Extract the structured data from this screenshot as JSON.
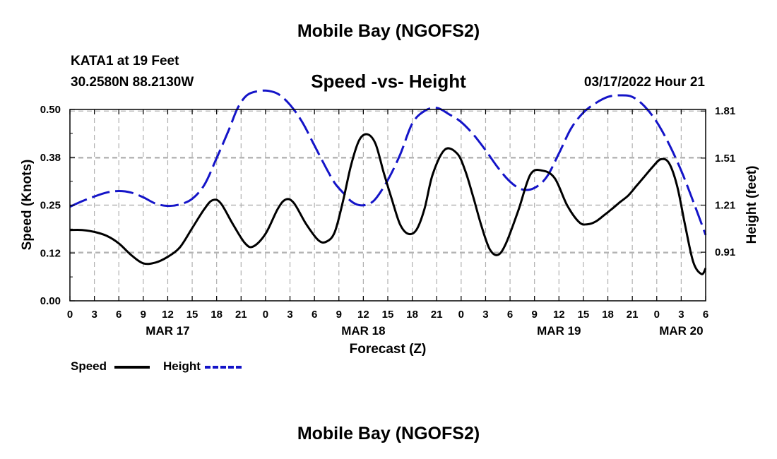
{
  "header": {
    "title": "Mobile Bay (NGOFS2)",
    "station": "KATA1 at 19 Feet",
    "coords": "30.2580N  88.2130W",
    "subtitle": "Speed -vs- Height",
    "datetime": "03/17/2022 Hour 21"
  },
  "footer": {
    "title": "Mobile Bay (NGOFS2)"
  },
  "legend": {
    "speed_label": "Speed",
    "height_label": "Height",
    "speed_color": "#000000",
    "height_color": "#1414c8"
  },
  "chart_data": {
    "type": "line",
    "title": "Speed -vs- Height",
    "xlabel": "Forecast (Z)",
    "ylabel": "Speed (Knots)",
    "y2label": "Height (feet)",
    "x_unit": "hours since 2022-03-17 00Z",
    "xlim": [
      0,
      78
    ],
    "ylim": [
      0,
      0.5
    ],
    "y2lim": [
      0.6,
      1.82
    ],
    "x_tick_values": [
      0,
      3,
      6,
      9,
      12,
      15,
      18,
      21,
      24,
      27,
      30,
      33,
      36,
      39,
      42,
      45,
      48,
      51,
      54,
      57,
      60,
      63,
      66,
      69,
      72,
      75,
      78
    ],
    "x_tick_labels": [
      "0",
      "3",
      "6",
      "9",
      "12",
      "15",
      "18",
      "21",
      "0",
      "3",
      "6",
      "9",
      "12",
      "15",
      "18",
      "21",
      "0",
      "3",
      "6",
      "9",
      "12",
      "15",
      "18",
      "21",
      "0",
      "3",
      "6"
    ],
    "day_labels": [
      {
        "x": 12,
        "label": "MAR 17"
      },
      {
        "x": 36,
        "label": "MAR 18"
      },
      {
        "x": 60,
        "label": "MAR 19"
      },
      {
        "x": 75,
        "label": "MAR 20"
      }
    ],
    "y_ticks": [
      0.0,
      0.125,
      0.25,
      0.375,
      0.5
    ],
    "y_tick_labels": [
      "0.00",
      "0.12",
      "0.25",
      "0.38",
      "0.50"
    ],
    "y2_ticks": [
      0.91,
      1.21,
      1.51,
      1.81
    ],
    "y2_tick_labels": [
      "0.91",
      "1.21",
      "1.51",
      "1.81"
    ],
    "grid": true,
    "series": [
      {
        "name": "Speed",
        "axis": "left",
        "style": "solid",
        "color": "#000000",
        "x": [
          0,
          1.5,
          3,
          4.5,
          6,
          7.5,
          9,
          10.5,
          12,
          13.5,
          15,
          16.5,
          17.5,
          18.5,
          20,
          21.5,
          22.5,
          24,
          25.5,
          26.5,
          27.5,
          29,
          30.5,
          31.5,
          32.5,
          33.5,
          34.5,
          35.5,
          36.5,
          37.5,
          38.5,
          39.5,
          40.5,
          41.5,
          42.5,
          43.5,
          44.5,
          46,
          47.5,
          48.5,
          49.5,
          50.5,
          51.5,
          52.5,
          53.5,
          55,
          56.5,
          58,
          59.5,
          61,
          62.5,
          63.5,
          64.5,
          65.5,
          66.5,
          67.5,
          68.5,
          69.5,
          70.5,
          71.5,
          72.5,
          73.5,
          74.5,
          75.5,
          76.5,
          77.5,
          78
        ],
        "values": [
          0.185,
          0.185,
          0.18,
          0.17,
          0.15,
          0.12,
          0.098,
          0.1,
          0.115,
          0.14,
          0.19,
          0.24,
          0.263,
          0.255,
          0.2,
          0.15,
          0.142,
          0.175,
          0.24,
          0.265,
          0.255,
          0.2,
          0.158,
          0.155,
          0.18,
          0.26,
          0.355,
          0.42,
          0.435,
          0.41,
          0.335,
          0.265,
          0.2,
          0.175,
          0.185,
          0.24,
          0.33,
          0.395,
          0.385,
          0.34,
          0.27,
          0.195,
          0.135,
          0.12,
          0.15,
          0.235,
          0.33,
          0.34,
          0.32,
          0.25,
          0.205,
          0.2,
          0.207,
          0.223,
          0.24,
          0.258,
          0.275,
          0.3,
          0.325,
          0.35,
          0.37,
          0.36,
          0.3,
          0.195,
          0.1,
          0.07,
          0.085
        ]
      },
      {
        "name": "Height",
        "axis": "right",
        "style": "dashed",
        "color": "#1414c8",
        "x": [
          0,
          1.5,
          3,
          4.5,
          6,
          7.5,
          9,
          10.5,
          12,
          13.5,
          15,
          16.5,
          18,
          19.5,
          20.5,
          21.5,
          22.5,
          24,
          25.5,
          27,
          28.5,
          30,
          31.5,
          32.5,
          33.5,
          34.5,
          35.5,
          36.5,
          37.5,
          39,
          40.5,
          42,
          43.5,
          45,
          46.5,
          48,
          49.5,
          51,
          52.5,
          54,
          55.5,
          57,
          58.5,
          60,
          61.5,
          63,
          64.5,
          66,
          67.5,
          69,
          70.5,
          72,
          73.5,
          75,
          76.5,
          78
        ],
        "values": [
          1.2,
          1.235,
          1.265,
          1.29,
          1.3,
          1.29,
          1.26,
          1.22,
          1.205,
          1.215,
          1.25,
          1.34,
          1.51,
          1.69,
          1.82,
          1.9,
          1.93,
          1.94,
          1.92,
          1.85,
          1.74,
          1.59,
          1.44,
          1.35,
          1.29,
          1.235,
          1.21,
          1.215,
          1.25,
          1.37,
          1.53,
          1.73,
          1.81,
          1.83,
          1.79,
          1.74,
          1.66,
          1.56,
          1.45,
          1.36,
          1.31,
          1.32,
          1.39,
          1.54,
          1.7,
          1.8,
          1.86,
          1.9,
          1.91,
          1.9,
          1.84,
          1.74,
          1.6,
          1.43,
          1.23,
          1.02
        ]
      }
    ]
  }
}
